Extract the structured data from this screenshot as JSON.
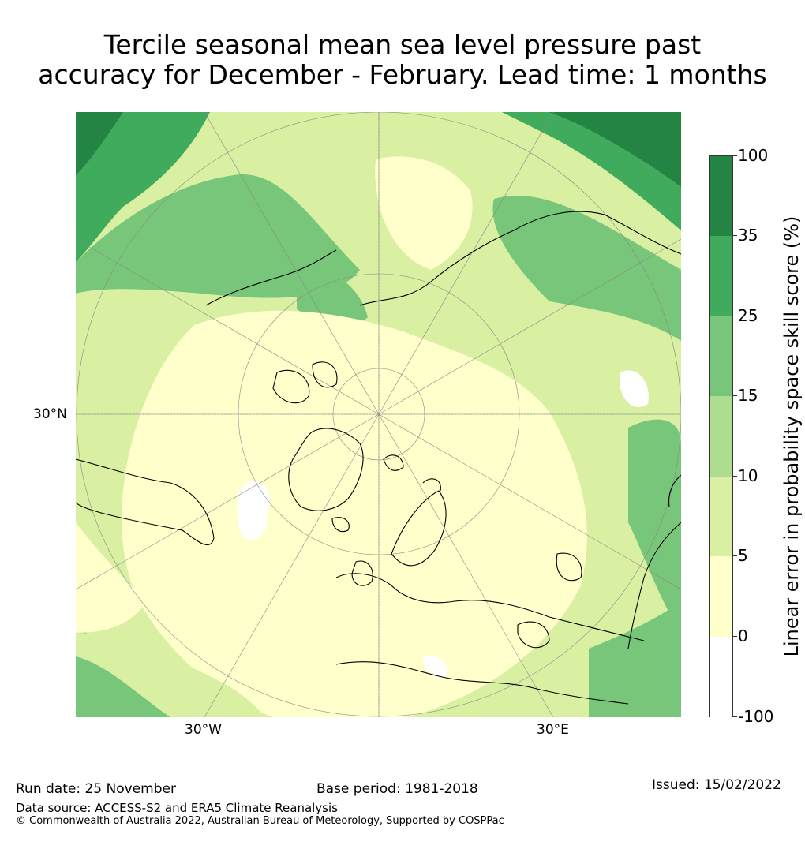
{
  "title": {
    "line1": "Tercile seasonal mean sea level pressure past",
    "line2": "accuracy for December - February. Lead time: 1 months"
  },
  "map": {
    "lat_label": "30°N",
    "lon_label_west": "30°W",
    "lon_label_east": "30°E"
  },
  "colorbar": {
    "label": "Linear error in probability space skill score (%)",
    "ticks": [
      "100",
      "35",
      "25",
      "15",
      "10",
      "5",
      "0",
      "-100"
    ],
    "colors": [
      "#238443",
      "#41ab5d",
      "#78c679",
      "#addd8e",
      "#d9f0a3",
      "#ffffcc",
      "#ffffff"
    ]
  },
  "footer": {
    "run_date": "Run date: 25 November",
    "base_period": "Base period: 1981-2018",
    "issued": "Issued: 15/02/2022",
    "data_source": "Data source: ACCESS-S2 and ERA5 Climate Reanalysis",
    "copyright": "© Commonwealth of Australia 2022, Australian Bureau of Meteorology, Supported by COSPPac"
  }
}
